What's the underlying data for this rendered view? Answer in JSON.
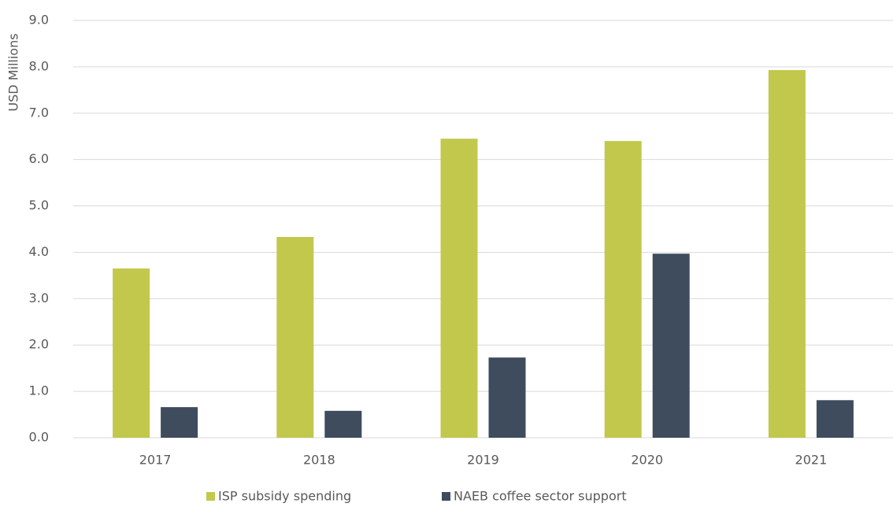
{
  "chart_data": {
    "type": "bar",
    "y_label": "USD Millions",
    "categories": [
      "2017",
      "2018",
      "2019",
      "2020",
      "2021"
    ],
    "series": [
      {
        "name": "ISP subsidy spending",
        "color": "#c2c84c",
        "values": [
          3.65,
          4.33,
          6.45,
          6.4,
          7.93
        ]
      },
      {
        "name": "NAEB coffee sector support",
        "color": "#3f4c5e",
        "values": [
          0.66,
          0.58,
          1.73,
          3.97,
          0.81
        ]
      }
    ],
    "ylim": [
      0,
      9
    ],
    "yticks": [
      {
        "value": 0,
        "label": "0.0"
      },
      {
        "value": 1,
        "label": "1.0"
      },
      {
        "value": 2,
        "label": "2.0"
      },
      {
        "value": 3,
        "label": "3.0"
      },
      {
        "value": 4,
        "label": "4.0"
      },
      {
        "value": 5,
        "label": "5.0"
      },
      {
        "value": 6,
        "label": "6.0"
      },
      {
        "value": 7,
        "label": "7.0"
      },
      {
        "value": 8,
        "label": "8.0"
      },
      {
        "value": 9,
        "label": "9.0"
      }
    ],
    "grid": true
  }
}
